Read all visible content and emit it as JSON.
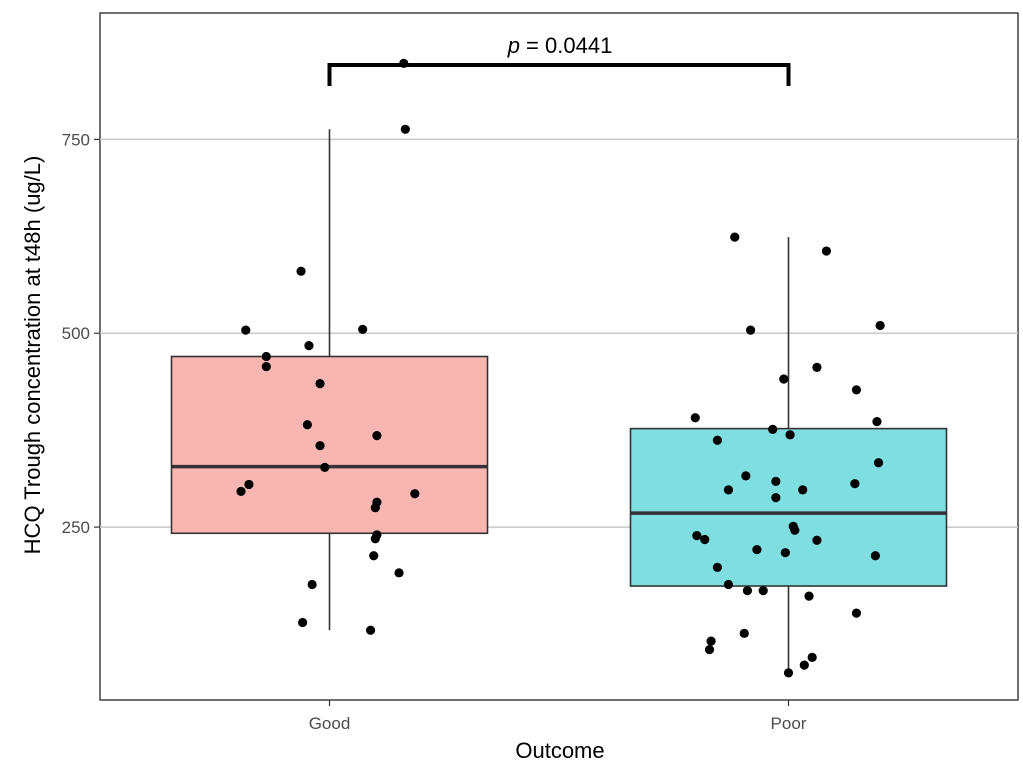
{
  "chart_data": {
    "type": "box",
    "xlabel": "Outcome",
    "ylabel": "HCQ Trough concentration at t48h (ug/L)",
    "categories": [
      "Good",
      "Poor"
    ],
    "y_ticks": [
      250,
      500,
      750
    ],
    "ylim": [
      27,
      913
    ],
    "grid": "horizontal major lines",
    "annotation": {
      "italic_label": "p",
      "text": " = 0.0441"
    },
    "boxes": [
      {
        "name": "Good",
        "color": "#F8B6B2",
        "q1": 242,
        "median": 328,
        "q3": 470,
        "whisker_low": 117,
        "whisker_high": 763
      },
      {
        "name": "Poor",
        "color": "#7EDEE0",
        "q1": 174,
        "median": 268,
        "q3": 377,
        "whisker_low": 62,
        "whisker_high": 624
      }
    ],
    "points": [
      {
        "group": "Good",
        "x": -0.56,
        "y": 296
      },
      {
        "group": "Good",
        "x": -0.51,
        "y": 305
      },
      {
        "group": "Good",
        "x": -0.53,
        "y": 504
      },
      {
        "group": "Good",
        "x": -0.4,
        "y": 470
      },
      {
        "group": "Good",
        "x": -0.4,
        "y": 457
      },
      {
        "group": "Good",
        "x": -0.18,
        "y": 580
      },
      {
        "group": "Good",
        "x": -0.14,
        "y": 382
      },
      {
        "group": "Good",
        "x": -0.13,
        "y": 484
      },
      {
        "group": "Good",
        "x": -0.17,
        "y": 127
      },
      {
        "group": "Good",
        "x": -0.11,
        "y": 176
      },
      {
        "group": "Good",
        "x": -0.06,
        "y": 435
      },
      {
        "group": "Good",
        "x": -0.06,
        "y": 355
      },
      {
        "group": "Good",
        "x": -0.03,
        "y": 327
      },
      {
        "group": "Good",
        "x": 0.21,
        "y": 505
      },
      {
        "group": "Good",
        "x": 0.3,
        "y": 368
      },
      {
        "group": "Good",
        "x": 0.3,
        "y": 282
      },
      {
        "group": "Good",
        "x": 0.29,
        "y": 275
      },
      {
        "group": "Good",
        "x": 0.3,
        "y": 240
      },
      {
        "group": "Good",
        "x": 0.29,
        "y": 235
      },
      {
        "group": "Good",
        "x": 0.28,
        "y": 213
      },
      {
        "group": "Good",
        "x": 0.26,
        "y": 117
      },
      {
        "group": "Good",
        "x": 0.44,
        "y": 191
      },
      {
        "group": "Good",
        "x": 0.54,
        "y": 293
      },
      {
        "group": "Good",
        "x": 0.47,
        "y": 848
      },
      {
        "group": "Good",
        "x": 0.48,
        "y": 763
      },
      {
        "group": "Poor",
        "x": -0.34,
        "y": 624
      },
      {
        "group": "Poor",
        "x": -0.24,
        "y": 504
      },
      {
        "group": "Poor",
        "x": -0.59,
        "y": 391
      },
      {
        "group": "Poor",
        "x": -0.45,
        "y": 362
      },
      {
        "group": "Poor",
        "x": -0.38,
        "y": 298
      },
      {
        "group": "Poor",
        "x": -0.27,
        "y": 316
      },
      {
        "group": "Poor",
        "x": -0.58,
        "y": 239
      },
      {
        "group": "Poor",
        "x": -0.53,
        "y": 234
      },
      {
        "group": "Poor",
        "x": -0.45,
        "y": 198
      },
      {
        "group": "Poor",
        "x": -0.38,
        "y": 176
      },
      {
        "group": "Poor",
        "x": -0.26,
        "y": 168
      },
      {
        "group": "Poor",
        "x": -0.16,
        "y": 168
      },
      {
        "group": "Poor",
        "x": -0.49,
        "y": 103
      },
      {
        "group": "Poor",
        "x": -0.5,
        "y": 92
      },
      {
        "group": "Poor",
        "x": -0.28,
        "y": 113
      },
      {
        "group": "Poor",
        "x": -0.1,
        "y": 376
      },
      {
        "group": "Poor",
        "x": -0.2,
        "y": 221
      },
      {
        "group": "Poor",
        "x": -0.08,
        "y": 309
      },
      {
        "group": "Poor",
        "x": -0.08,
        "y": 288
      },
      {
        "group": "Poor",
        "x": -0.03,
        "y": 441
      },
      {
        "group": "Poor",
        "x": -0.02,
        "y": 217
      },
      {
        "group": "Poor",
        "x": 0.01,
        "y": 369
      },
      {
        "group": "Poor",
        "x": 0.03,
        "y": 251
      },
      {
        "group": "Poor",
        "x": 0.04,
        "y": 246
      },
      {
        "group": "Poor",
        "x": 0.09,
        "y": 298
      },
      {
        "group": "Poor",
        "x": 0.13,
        "y": 161
      },
      {
        "group": "Poor",
        "x": 0.18,
        "y": 233
      },
      {
        "group": "Poor",
        "x": 0.18,
        "y": 456
      },
      {
        "group": "Poor",
        "x": 0.24,
        "y": 606
      },
      {
        "group": "Poor",
        "x": 0.43,
        "y": 427
      },
      {
        "group": "Poor",
        "x": 0.43,
        "y": 139
      },
      {
        "group": "Poor",
        "x": 0.42,
        "y": 306
      },
      {
        "group": "Poor",
        "x": 0.56,
        "y": 386
      },
      {
        "group": "Poor",
        "x": 0.58,
        "y": 510
      },
      {
        "group": "Poor",
        "x": 0.57,
        "y": 333
      },
      {
        "group": "Poor",
        "x": 0.55,
        "y": 213
      },
      {
        "group": "Poor",
        "x": 0.1,
        "y": 72
      },
      {
        "group": "Poor",
        "x": 0.15,
        "y": 82
      },
      {
        "group": "Poor",
        "x": 0.0,
        "y": 62
      }
    ]
  }
}
